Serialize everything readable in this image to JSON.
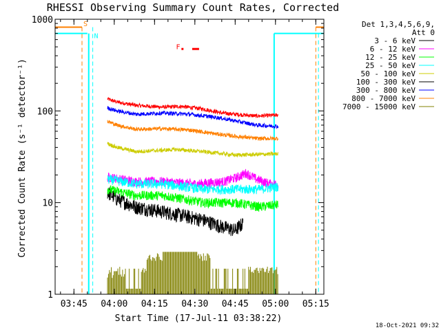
{
  "chart_data": {
    "type": "line",
    "title": "RHESSI Observing Summary Count Rates, Corrected",
    "xlabel": "Start Time (17-Jul-11 03:38:22)",
    "ylabel": "Corrected Count Rate (s⁻¹ detector⁻¹)",
    "y_scale": "log",
    "ylim": [
      1,
      1000
    ],
    "xlim_minutes_after_0338": [
      0,
      100
    ],
    "x_ticks": [
      {
        "label": "03:45",
        "minutes": 7
      },
      {
        "label": "04:00",
        "minutes": 22
      },
      {
        "label": "04:15",
        "minutes": 37
      },
      {
        "label": "04:30",
        "minutes": 52
      },
      {
        "label": "04:45",
        "minutes": 67
      },
      {
        "label": "05:00",
        "minutes": 82
      },
      {
        "label": "05:15",
        "minutes": 97
      }
    ],
    "y_ticks": [
      {
        "label": "1",
        "value": 1
      },
      {
        "label": "10",
        "value": 10
      },
      {
        "label": "100",
        "value": 100
      },
      {
        "label": "1000",
        "value": 1000
      }
    ],
    "legend": {
      "header": "Det 1,3,4,5,6,9,",
      "subheader": "Att 0",
      "position": "right"
    },
    "series": [
      {
        "name": "3 - 6 keV",
        "color": "#000000",
        "key": [
          [
            19.5,
            13
          ],
          [
            23,
            11
          ],
          [
            30,
            9
          ],
          [
            40,
            8
          ],
          [
            55,
            6.5
          ],
          [
            62,
            5.5
          ],
          [
            67,
            5
          ],
          [
            70,
            6
          ]
        ]
      },
      {
        "name": "6 - 12 keV",
        "color": "#ff00ff",
        "key": [
          [
            19.5,
            19
          ],
          [
            30,
            17
          ],
          [
            40,
            17
          ],
          [
            52,
            16
          ],
          [
            63,
            17
          ],
          [
            68,
            19
          ],
          [
            71,
            21
          ],
          [
            75,
            18
          ],
          [
            80,
            16
          ],
          [
            83,
            16
          ]
        ]
      },
      {
        "name": "12 - 25 keV",
        "color": "#00ff00",
        "key": [
          [
            19.5,
            14
          ],
          [
            30,
            12
          ],
          [
            40,
            12
          ],
          [
            55,
            10
          ],
          [
            67,
            10
          ],
          [
            76,
            9
          ],
          [
            83,
            9.5
          ]
        ]
      },
      {
        "name": "25 - 50 keV",
        "color": "#00ffff",
        "key": [
          [
            19.5,
            18
          ],
          [
            30,
            16
          ],
          [
            40,
            16
          ],
          [
            55,
            14
          ],
          [
            67,
            14
          ],
          [
            76,
            14
          ],
          [
            83,
            15
          ]
        ]
      },
      {
        "name": "50 - 100 keV",
        "color": "#cccc00",
        "key": [
          [
            19.5,
            44
          ],
          [
            23,
            40
          ],
          [
            30,
            36
          ],
          [
            45,
            38
          ],
          [
            55,
            36
          ],
          [
            67,
            33
          ],
          [
            83,
            34
          ]
        ]
      },
      {
        "name": "100 - 300 keV",
        "color": "#000000",
        "key": []
      },
      {
        "name": "300 - 800 keV",
        "color": "#0000ff",
        "key": [
          [
            19.5,
            108
          ],
          [
            23,
            100
          ],
          [
            30,
            92
          ],
          [
            40,
            95
          ],
          [
            50,
            92
          ],
          [
            60,
            85
          ],
          [
            67,
            78
          ],
          [
            75,
            70
          ],
          [
            83,
            68
          ]
        ]
      },
      {
        "name": "800 - 7000 keV",
        "color": "#ff8000",
        "key": [
          [
            19.5,
            77
          ],
          [
            23,
            70
          ],
          [
            30,
            63
          ],
          [
            40,
            64
          ],
          [
            50,
            62
          ],
          [
            60,
            56
          ],
          [
            67,
            53
          ],
          [
            75,
            50
          ],
          [
            83,
            50
          ]
        ]
      },
      {
        "name": "7000 - 15000 keV",
        "color": "#808000",
        "key": [
          [
            19.5,
            1.5
          ],
          [
            83,
            1.5
          ]
        ]
      }
    ],
    "red_series": {
      "name": "red",
      "color": "#ff0000",
      "key": [
        [
          19.5,
          135
        ],
        [
          23,
          125
        ],
        [
          30,
          115
        ],
        [
          40,
          110
        ],
        [
          47,
          112
        ],
        [
          55,
          105
        ],
        [
          62,
          95
        ],
        [
          67,
          92
        ],
        [
          75,
          88
        ],
        [
          83,
          90
        ]
      ]
    },
    "annotations": [
      {
        "text": "S",
        "color": "#ff8000"
      },
      {
        "text": "N",
        "color": "#00ffff"
      },
      {
        "text": "F",
        "color": "#ff0000"
      }
    ],
    "footer_date": "18-Oct-2021 09:32"
  }
}
